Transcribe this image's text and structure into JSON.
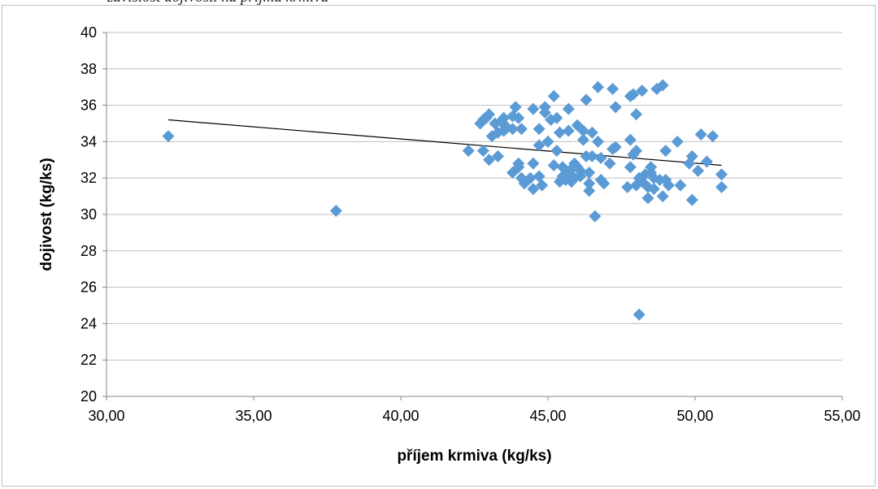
{
  "caption": {
    "text": "závislost dojivosti na příjmu krmiva"
  },
  "chart_data": {
    "type": "scatter",
    "title": "",
    "xlabel": "příjem krmiva (kg/ks)",
    "ylabel": "dojivost (kg/ks)",
    "xlim": [
      30,
      55
    ],
    "ylim": [
      20,
      40
    ],
    "x_ticks": [
      "30,00",
      "35,00",
      "40,00",
      "45,00",
      "50,00",
      "55,00"
    ],
    "y_ticks": [
      "20",
      "22",
      "24",
      "26",
      "28",
      "30",
      "32",
      "34",
      "36",
      "38",
      "40"
    ],
    "x_tick_values": [
      30,
      35,
      40,
      45,
      50,
      55
    ],
    "y_tick_values": [
      20,
      22,
      24,
      26,
      28,
      30,
      32,
      34,
      36,
      38,
      40
    ],
    "grid": "horizontal",
    "legend": "none",
    "marker": "diamond",
    "marker_color": "#5b9bd5",
    "trendline": {
      "type": "linear",
      "color": "#000000",
      "x": [
        32.1,
        50.9
      ],
      "y": [
        35.2,
        32.7
      ]
    },
    "points": [
      [
        32.1,
        34.3
      ],
      [
        37.8,
        30.2
      ],
      [
        42.3,
        33.5
      ],
      [
        42.7,
        35.0
      ],
      [
        42.8,
        35.2
      ],
      [
        42.8,
        33.5
      ],
      [
        42.9,
        35.3
      ],
      [
        43.0,
        33.0
      ],
      [
        43.0,
        35.5
      ],
      [
        43.1,
        34.3
      ],
      [
        43.2,
        35.0
      ],
      [
        43.3,
        33.2
      ],
      [
        43.3,
        34.5
      ],
      [
        43.4,
        35.1
      ],
      [
        43.5,
        35.3
      ],
      [
        43.5,
        34.6
      ],
      [
        43.6,
        34.8
      ],
      [
        43.8,
        34.7
      ],
      [
        43.8,
        35.4
      ],
      [
        43.8,
        32.3
      ],
      [
        43.9,
        35.9
      ],
      [
        44.0,
        32.6
      ],
      [
        44.0,
        32.8
      ],
      [
        44.0,
        35.3
      ],
      [
        44.1,
        34.7
      ],
      [
        44.1,
        32.0
      ],
      [
        44.2,
        31.7
      ],
      [
        44.4,
        32.0
      ],
      [
        44.5,
        32.8
      ],
      [
        44.5,
        35.8
      ],
      [
        44.5,
        31.4
      ],
      [
        44.7,
        34.7
      ],
      [
        44.7,
        33.8
      ],
      [
        44.7,
        32.1
      ],
      [
        44.8,
        31.6
      ],
      [
        44.9,
        35.9
      ],
      [
        44.9,
        35.6
      ],
      [
        45.0,
        34.0
      ],
      [
        45.1,
        35.2
      ],
      [
        45.2,
        36.5
      ],
      [
        45.2,
        32.7
      ],
      [
        45.3,
        35.3
      ],
      [
        45.3,
        33.5
      ],
      [
        45.4,
        34.5
      ],
      [
        45.4,
        31.8
      ],
      [
        45.5,
        32.6
      ],
      [
        45.5,
        32.1
      ],
      [
        45.6,
        31.9
      ],
      [
        45.7,
        35.8
      ],
      [
        45.7,
        34.6
      ],
      [
        45.7,
        32.3
      ],
      [
        45.8,
        32.5
      ],
      [
        45.8,
        31.8
      ],
      [
        45.9,
        32.0
      ],
      [
        45.9,
        32.8
      ],
      [
        46.0,
        32.6
      ],
      [
        46.0,
        34.9
      ],
      [
        46.1,
        32.1
      ],
      [
        46.1,
        32.4
      ],
      [
        46.2,
        34.6
      ],
      [
        46.2,
        34.1
      ],
      [
        46.3,
        33.2
      ],
      [
        46.3,
        36.3
      ],
      [
        46.4,
        31.7
      ],
      [
        46.4,
        31.3
      ],
      [
        46.4,
        32.3
      ],
      [
        46.5,
        34.5
      ],
      [
        46.5,
        33.2
      ],
      [
        46.6,
        29.9
      ],
      [
        46.7,
        37.0
      ],
      [
        46.7,
        34.0
      ],
      [
        46.8,
        33.1
      ],
      [
        46.8,
        31.9
      ],
      [
        46.9,
        31.7
      ],
      [
        47.1,
        32.8
      ],
      [
        47.2,
        36.9
      ],
      [
        47.2,
        33.6
      ],
      [
        47.3,
        33.7
      ],
      [
        47.3,
        35.9
      ],
      [
        47.7,
        31.5
      ],
      [
        47.8,
        34.1
      ],
      [
        47.8,
        36.5
      ],
      [
        47.8,
        32.6
      ],
      [
        47.9,
        36.6
      ],
      [
        47.9,
        33.3
      ],
      [
        48.0,
        33.5
      ],
      [
        48.0,
        35.5
      ],
      [
        48.0,
        31.6
      ],
      [
        48.1,
        24.5
      ],
      [
        48.1,
        32.0
      ],
      [
        48.2,
        36.8
      ],
      [
        48.2,
        31.8
      ],
      [
        48.3,
        32.2
      ],
      [
        48.4,
        30.9
      ],
      [
        48.4,
        31.5
      ],
      [
        48.5,
        32.6
      ],
      [
        48.5,
        32.3
      ],
      [
        48.6,
        31.4
      ],
      [
        48.6,
        32.0
      ],
      [
        48.7,
        36.9
      ],
      [
        48.8,
        31.9
      ],
      [
        48.9,
        37.1
      ],
      [
        48.9,
        31.0
      ],
      [
        49.0,
        31.9
      ],
      [
        49.0,
        33.5
      ],
      [
        49.1,
        31.6
      ],
      [
        49.4,
        34.0
      ],
      [
        49.5,
        31.6
      ],
      [
        49.8,
        32.8
      ],
      [
        49.9,
        30.8
      ],
      [
        49.9,
        33.2
      ],
      [
        50.1,
        32.4
      ],
      [
        50.2,
        34.4
      ],
      [
        50.4,
        32.9
      ],
      [
        50.6,
        34.3
      ],
      [
        50.9,
        31.5
      ],
      [
        50.9,
        32.2
      ]
    ]
  }
}
